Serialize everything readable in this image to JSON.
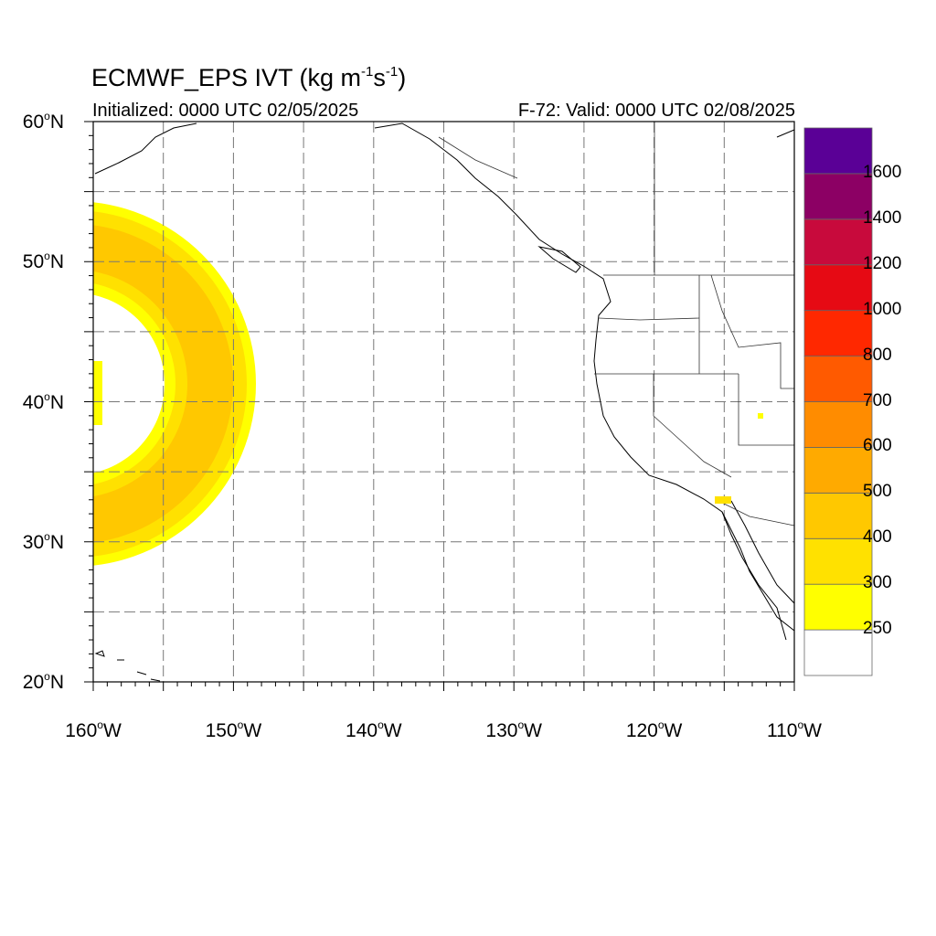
{
  "header": {
    "title_main": "ECMWF_EPS IVT (kg m",
    "title_sup1": "-1",
    "title_mid": "s",
    "title_sup2": "-1",
    "title_end": ")",
    "initialized": "Initialized: 0000 UTC 02/05/2025",
    "valid": "F-72: Valid: 0000 UTC 02/08/2025"
  },
  "map": {
    "lat_labels": [
      {
        "lat": 60,
        "text": "60",
        "hemi": "N"
      },
      {
        "lat": 50,
        "text": "50",
        "hemi": "N"
      },
      {
        "lat": 40,
        "text": "40",
        "hemi": "N"
      },
      {
        "lat": 30,
        "text": "30",
        "hemi": "N"
      },
      {
        "lat": 20,
        "text": "20",
        "hemi": "N"
      }
    ],
    "lon_labels": [
      {
        "lon": -160,
        "text": "160",
        "hemi": "W"
      },
      {
        "lon": -150,
        "text": "150",
        "hemi": "W"
      },
      {
        "lon": -140,
        "text": "140",
        "hemi": "W"
      },
      {
        "lon": -130,
        "text": "130",
        "hemi": "W"
      },
      {
        "lon": -120,
        "text": "120",
        "hemi": "W"
      },
      {
        "lon": -110,
        "text": "110",
        "hemi": "W"
      }
    ],
    "lon_range": [
      -160,
      -110
    ],
    "lat_range": [
      20,
      60
    ],
    "grid_dashed": true
  },
  "colorbar": {
    "levels": [
      "250",
      "300",
      "400",
      "500",
      "600",
      "700",
      "800",
      "1000",
      "1200",
      "1400",
      "1600"
    ],
    "colors": [
      "#ffffff",
      "#ffff00",
      "#ffe100",
      "#ffc800",
      "#ffaa00",
      "#ff8c00",
      "#ff5a00",
      "#ff2800",
      "#e60a14",
      "#c80a3c",
      "#8c0064",
      "#5a0096"
    ]
  }
}
